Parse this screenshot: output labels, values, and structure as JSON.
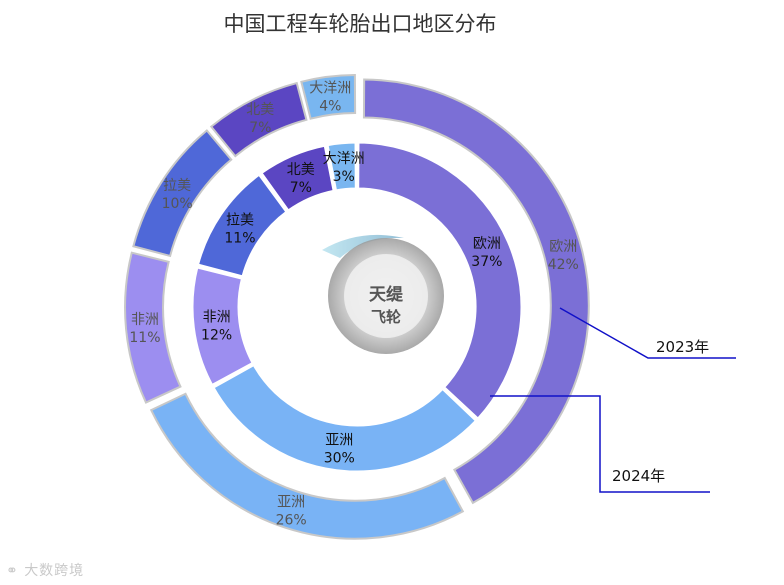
{
  "chart_data": {
    "type": "pie",
    "title": "中国工程车轮胎出口地区分布",
    "colors": {
      "欧洲": "#7b6fd6",
      "亚洲": "#79b3f5",
      "非洲": "#9c8ef0",
      "拉美": "#4f68d8",
      "北美": "#5b46c2",
      "大洋洲": "#79b6f0"
    },
    "series": [
      {
        "name": "2024年",
        "ring": "inner",
        "slices": [
          {
            "label": "欧洲",
            "value": 37,
            "pct": "37%"
          },
          {
            "label": "亚洲",
            "value": 30,
            "pct": "30%"
          },
          {
            "label": "非洲",
            "value": 12,
            "pct": "12%"
          },
          {
            "label": "拉美",
            "value": 11,
            "pct": "11%"
          },
          {
            "label": "北美",
            "value": 7,
            "pct": "7%"
          },
          {
            "label": "大洋洲",
            "value": 3,
            "pct": "3%"
          }
        ]
      },
      {
        "name": "2023年",
        "ring": "outer",
        "slices": [
          {
            "label": "欧洲",
            "value": 42,
            "pct": "42%"
          },
          {
            "label": "亚洲",
            "value": 26,
            "pct": "26%"
          },
          {
            "label": "非洲",
            "value": 11,
            "pct": "11%"
          },
          {
            "label": "拉美",
            "value": 10,
            "pct": "10%"
          },
          {
            "label": "北美",
            "value": 7,
            "pct": "7%"
          },
          {
            "label": "大洋洲",
            "value": 4,
            "pct": "4%"
          }
        ]
      }
    ],
    "center_logo_text": [
      "天缇",
      "飞轮"
    ]
  },
  "watermark": "大数跨境"
}
